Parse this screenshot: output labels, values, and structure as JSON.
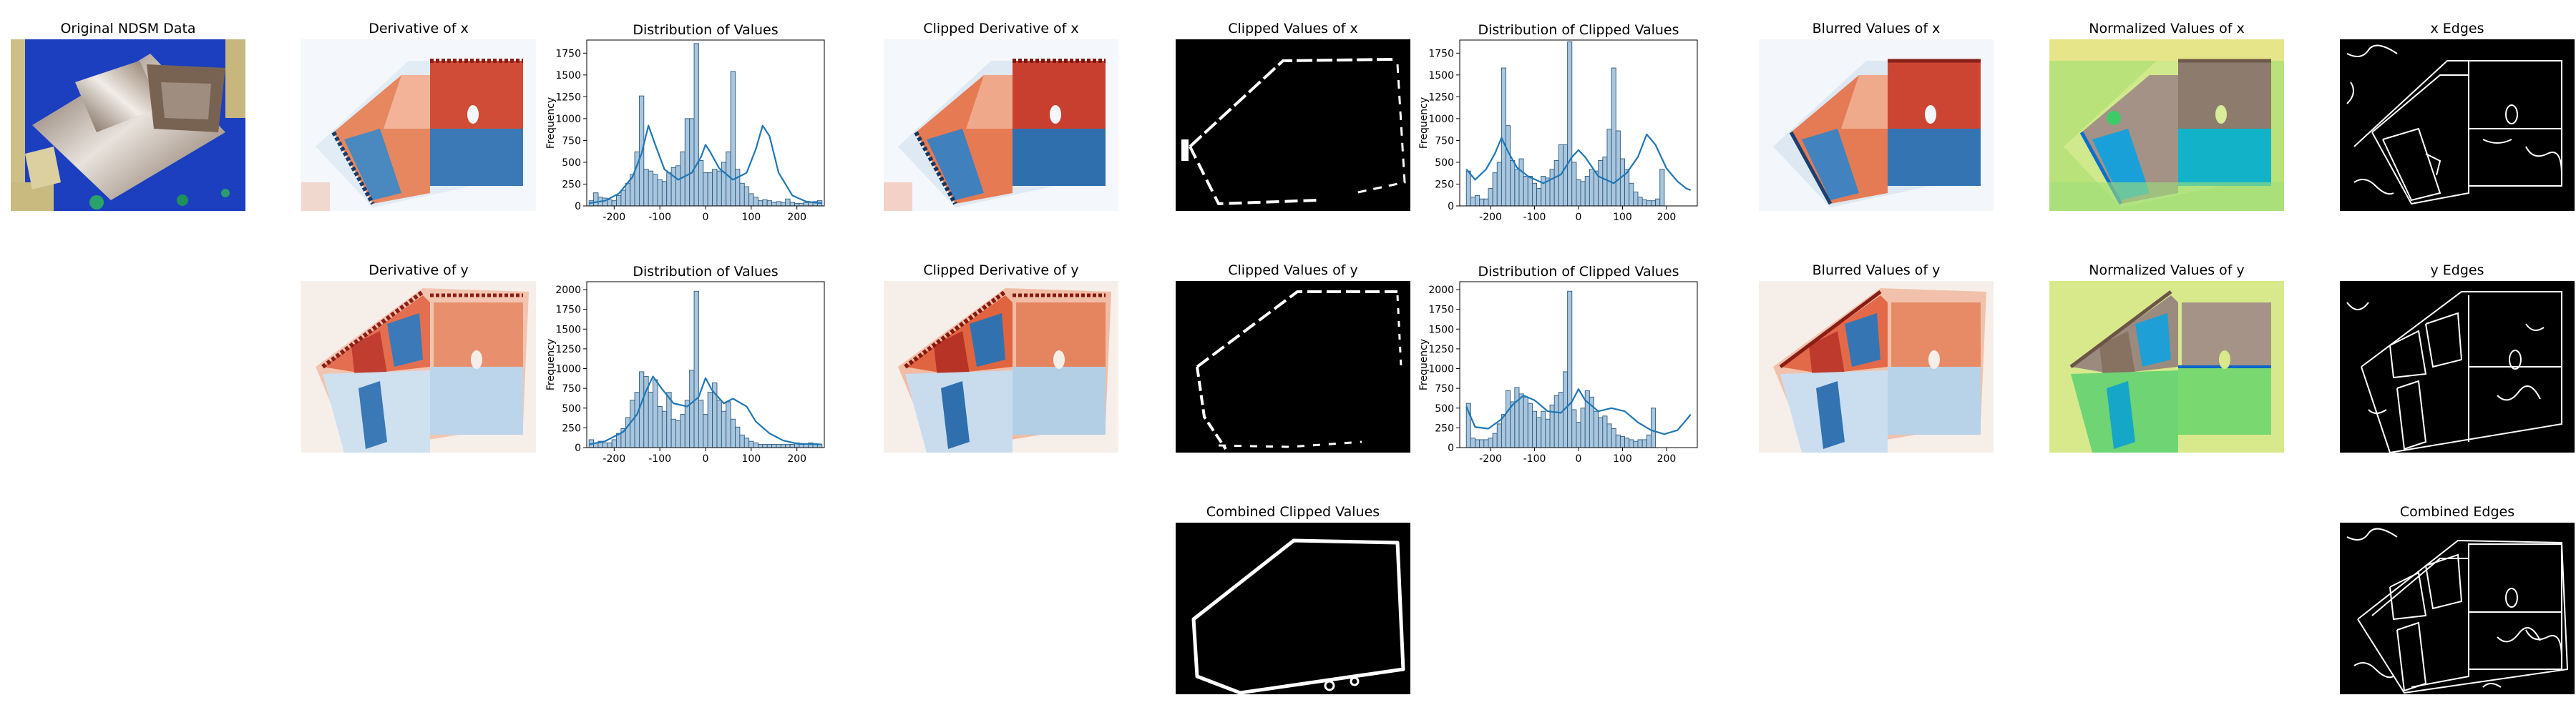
{
  "panels": {
    "ndsm": {
      "title": "Original NDSM Data"
    },
    "deriv_x": {
      "title": "Derivative of x"
    },
    "deriv_y": {
      "title": "Derivative of y"
    },
    "clipderiv_x": {
      "title": "Clipped Derivative of x"
    },
    "clipderiv_y": {
      "title": "Clipped Derivative of y"
    },
    "clipval_x": {
      "title": "Clipped Values  of x"
    },
    "clipval_y": {
      "title": "Clipped Values  of y"
    },
    "combined_clipped": {
      "title": "Combined Clipped Values"
    },
    "blur_x": {
      "title": "Blurred Values of x"
    },
    "blur_y": {
      "title": "Blurred Values of y"
    },
    "norm_x": {
      "title": "Normalized Values of x"
    },
    "norm_y": {
      "title": "Normalized Values of y"
    },
    "edges_x": {
      "title": "x Edges"
    },
    "edges_y": {
      "title": "y Edges"
    },
    "combined_edges": {
      "title": "Combined Edges"
    }
  },
  "colors": {
    "bar_fill": "#a9c6de",
    "bar_edge": "#2c5a7f",
    "kde_line": "#1f77b4",
    "red": "#c8402f",
    "blue": "#3a78b6",
    "background_white": "#ffffff",
    "ndsm_blue": "#1b3fc0"
  },
  "chart_data": [
    {
      "id": "hist_x",
      "type": "bar",
      "title": "Distribution of Values",
      "ylabel": "Frequency",
      "xlim": [
        -260,
        260
      ],
      "ylim": [
        0,
        1900
      ],
      "xticks": [
        -200,
        -100,
        0,
        100,
        200
      ],
      "yticks": [
        0,
        250,
        500,
        750,
        1000,
        1250,
        1500,
        1750
      ],
      "bin_start": -255,
      "bin_width": 10,
      "values": [
        60,
        150,
        100,
        90,
        70,
        60,
        120,
        180,
        260,
        360,
        620,
        1260,
        420,
        400,
        360,
        300,
        280,
        380,
        440,
        460,
        620,
        1000,
        1000,
        1860,
        520,
        380,
        380,
        420,
        400,
        500,
        620,
        1540,
        420,
        260,
        220,
        140,
        100,
        60,
        70,
        60,
        40,
        50,
        40,
        80,
        40,
        30,
        30,
        40,
        40,
        50,
        60
      ],
      "kde": [
        [
          -255,
          30
        ],
        [
          -220,
          60
        ],
        [
          -190,
          140
        ],
        [
          -160,
          330
        ],
        [
          -140,
          600
        ],
        [
          -125,
          920
        ],
        [
          -110,
          700
        ],
        [
          -90,
          420
        ],
        [
          -60,
          300
        ],
        [
          -30,
          380
        ],
        [
          -10,
          560
        ],
        [
          0,
          700
        ],
        [
          10,
          620
        ],
        [
          30,
          430
        ],
        [
          60,
          300
        ],
        [
          90,
          380
        ],
        [
          110,
          650
        ],
        [
          125,
          920
        ],
        [
          140,
          800
        ],
        [
          160,
          380
        ],
        [
          190,
          120
        ],
        [
          220,
          50
        ],
        [
          255,
          30
        ]
      ]
    },
    {
      "id": "hist_y",
      "type": "bar",
      "title": "Distribution of Values",
      "ylabel": "Frequency",
      "xlim": [
        -260,
        260
      ],
      "ylim": [
        0,
        2100
      ],
      "xticks": [
        -200,
        -100,
        0,
        100,
        200
      ],
      "yticks": [
        0,
        250,
        500,
        750,
        1000,
        1250,
        1500,
        1750,
        2000
      ],
      "bin_start": -255,
      "bin_width": 10,
      "values": [
        100,
        60,
        80,
        60,
        60,
        100,
        180,
        240,
        380,
        600,
        700,
        960,
        900,
        700,
        860,
        520,
        460,
        700,
        360,
        340,
        420,
        600,
        980,
        1980,
        600,
        420,
        700,
        820,
        600,
        460,
        580,
        360,
        260,
        160,
        120,
        80,
        60,
        40,
        40,
        40,
        40,
        40,
        40,
        40,
        40,
        60,
        40,
        40,
        60,
        50,
        40
      ],
      "kde": [
        [
          -255,
          40
        ],
        [
          -220,
          80
        ],
        [
          -180,
          200
        ],
        [
          -150,
          420
        ],
        [
          -130,
          720
        ],
        [
          -115,
          900
        ],
        [
          -95,
          740
        ],
        [
          -70,
          560
        ],
        [
          -40,
          520
        ],
        [
          -15,
          640
        ],
        [
          0,
          880
        ],
        [
          15,
          720
        ],
        [
          40,
          560
        ],
        [
          60,
          620
        ],
        [
          90,
          520
        ],
        [
          110,
          330
        ],
        [
          140,
          180
        ],
        [
          170,
          90
        ],
        [
          200,
          50
        ],
        [
          255,
          40
        ]
      ]
    },
    {
      "id": "hist_clipped_x",
      "type": "bar",
      "title": "Distribution of Clipped Values",
      "ylabel": "Frequency",
      "xlim": [
        -270,
        270
      ],
      "ylim": [
        0,
        1900
      ],
      "xticks": [
        -200,
        -100,
        0,
        100,
        200
      ],
      "yticks": [
        0,
        250,
        500,
        750,
        1000,
        1250,
        1500,
        1750
      ],
      "bin_start": -255,
      "bin_width": 10,
      "values": [
        400,
        100,
        120,
        80,
        80,
        200,
        380,
        500,
        1580,
        920,
        520,
        420,
        540,
        340,
        340,
        260,
        200,
        340,
        320,
        420,
        520,
        700,
        700,
        1880,
        500,
        300,
        280,
        340,
        420,
        400,
        520,
        560,
        880,
        1580,
        860,
        540,
        420,
        260,
        160,
        100,
        70,
        60,
        60,
        80,
        420
      ],
      "kde": [
        [
          -255,
          420
        ],
        [
          -235,
          300
        ],
        [
          -210,
          420
        ],
        [
          -190,
          600
        ],
        [
          -175,
          780
        ],
        [
          -160,
          620
        ],
        [
          -140,
          440
        ],
        [
          -115,
          340
        ],
        [
          -80,
          260
        ],
        [
          -40,
          360
        ],
        [
          -15,
          560
        ],
        [
          0,
          640
        ],
        [
          15,
          560
        ],
        [
          45,
          340
        ],
        [
          80,
          260
        ],
        [
          110,
          380
        ],
        [
          135,
          560
        ],
        [
          155,
          820
        ],
        [
          175,
          700
        ],
        [
          200,
          430
        ],
        [
          225,
          280
        ],
        [
          245,
          200
        ],
        [
          255,
          180
        ]
      ]
    },
    {
      "id": "hist_clipped_y",
      "type": "bar",
      "title": "Distribution of Clipped Values",
      "ylabel": "Frequency",
      "xlim": [
        -270,
        270
      ],
      "ylim": [
        0,
        2100
      ],
      "xticks": [
        -200,
        -100,
        0,
        100,
        200
      ],
      "yticks": [
        0,
        250,
        500,
        750,
        1000,
        1250,
        1500,
        1750,
        2000
      ],
      "bin_start": -255,
      "bin_width": 10,
      "values": [
        560,
        120,
        100,
        100,
        100,
        120,
        180,
        300,
        420,
        720,
        580,
        760,
        680,
        640,
        560,
        460,
        380,
        460,
        360,
        540,
        660,
        700,
        960,
        1980,
        480,
        320,
        500,
        720,
        640,
        460,
        380,
        400,
        300,
        240,
        160,
        140,
        120,
        100,
        80,
        100,
        100,
        160,
        500
      ],
      "kde": [
        [
          -255,
          520
        ],
        [
          -235,
          260
        ],
        [
          -205,
          240
        ],
        [
          -175,
          360
        ],
        [
          -150,
          540
        ],
        [
          -125,
          660
        ],
        [
          -100,
          600
        ],
        [
          -70,
          460
        ],
        [
          -40,
          440
        ],
        [
          -15,
          580
        ],
        [
          0,
          740
        ],
        [
          15,
          600
        ],
        [
          45,
          460
        ],
        [
          75,
          500
        ],
        [
          105,
          460
        ],
        [
          135,
          320
        ],
        [
          165,
          220
        ],
        [
          195,
          170
        ],
        [
          225,
          220
        ],
        [
          245,
          350
        ],
        [
          255,
          420
        ]
      ]
    }
  ]
}
